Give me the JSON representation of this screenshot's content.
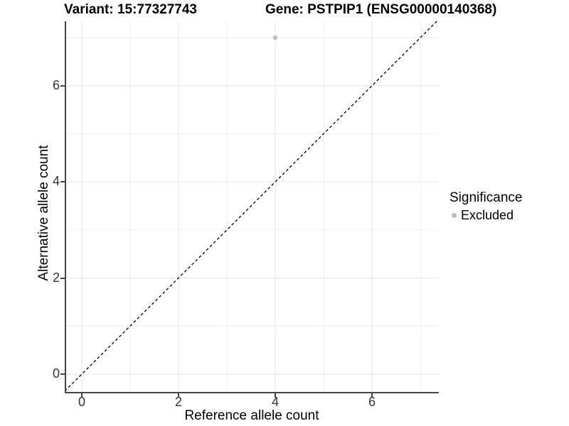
{
  "title": {
    "variant": "Variant: 15:77327743",
    "gene": "Gene: PSTPIP1 (ENSG00000140368)"
  },
  "axes": {
    "x": {
      "label": "Reference allele count",
      "tick_labels": [
        "0",
        "2",
        "4",
        "6"
      ]
    },
    "y": {
      "label": "Alternative allele count",
      "tick_labels": [
        "0",
        "2",
        "4",
        "6"
      ]
    }
  },
  "legend": {
    "title": "Significance",
    "items": [
      {
        "label": "Excluded",
        "color": "#bdbdbd"
      }
    ]
  },
  "colors": {
    "axis_line": "#454545",
    "tick_mark": "#454545",
    "tick_label": "#333333",
    "grid_major": "#e3e3e3",
    "grid_minor": "#eeeeee",
    "dashed_line": "#000000",
    "point": "#bdbdbd",
    "background": "#ffffff"
  },
  "chart_data": {
    "type": "scatter",
    "title": "Variant: 15:77327743    Gene: PSTPIP1 (ENSG00000140368)",
    "xlabel": "Reference allele count",
    "ylabel": "Alternative allele count",
    "xlim": [
      -0.353,
      7.382
    ],
    "ylim": [
      -0.4,
      7.34
    ],
    "x_ticks": [
      0,
      2,
      4,
      6
    ],
    "y_ticks": [
      0,
      2,
      4,
      6
    ],
    "grid": true,
    "grid_major": [
      0,
      2,
      4,
      6
    ],
    "grid_minor": [
      1,
      3,
      5,
      7
    ],
    "series": [
      {
        "name": "Excluded",
        "color": "#bdbdbd",
        "points": [
          [
            4,
            7
          ]
        ]
      }
    ],
    "identity_line": {
      "intercept": 0,
      "slope": 1,
      "style": "dashed",
      "color": "#000000"
    },
    "legend_position": "right",
    "legend_title": "Significance"
  }
}
